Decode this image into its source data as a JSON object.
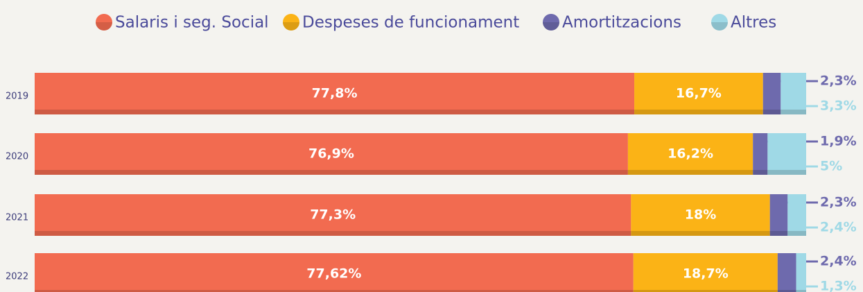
{
  "chart_data": {
    "type": "stacked-bar-horizontal",
    "categories": [
      "2019",
      "2020",
      "2021",
      "2022"
    ],
    "series": [
      {
        "name": "Salaris i seg. Social",
        "color": "#f26b50",
        "values": [
          77.8,
          76.9,
          77.3,
          77.62
        ],
        "value_labels": [
          "77,8%",
          "76,9%",
          "77,3%",
          "77,62%"
        ]
      },
      {
        "name": "Despeses de funcionament",
        "color": "#fbb316",
        "values": [
          16.7,
          16.2,
          18,
          18.7
        ],
        "value_labels": [
          "16,7%",
          "16,2%",
          "18%",
          "18,7%"
        ]
      },
      {
        "name": "Amortitzacions",
        "color": "#6e6aad",
        "values": [
          2.3,
          1.9,
          2.3,
          2.4
        ],
        "value_labels": [
          "2,3%",
          "1,9%",
          "2,3%",
          "2,4%"
        ]
      },
      {
        "name": "Altres",
        "color": "#9fd9e6",
        "values": [
          3.3,
          5,
          2.4,
          1.3
        ],
        "value_labels": [
          "3,3%",
          "5%",
          "2,4%",
          "1,3%"
        ]
      }
    ]
  }
}
